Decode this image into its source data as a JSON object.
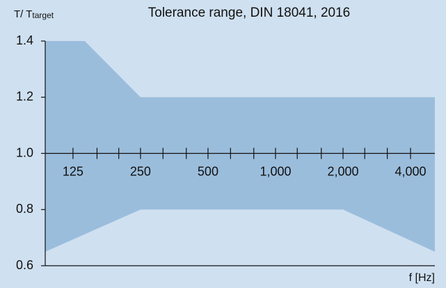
{
  "chart_data": {
    "type": "area",
    "title": "Tolerance range, DIN 18041, 2016",
    "ylabel": {
      "text": "T/ T",
      "subscript": "target"
    },
    "xlabel": "f [Hz]",
    "xscale": "log",
    "color": "#9bbddc",
    "upper": {
      "x": [
        94,
        141,
        250,
        5135
      ],
      "values": [
        1.4,
        1.4,
        1.2,
        1.2
      ]
    },
    "lower": {
      "x": [
        94,
        250,
        2000,
        5135
      ],
      "values": [
        0.65,
        0.8,
        0.8,
        0.65
      ]
    },
    "xlim": [
      94,
      5135
    ],
    "xticks": [
      125,
      250,
      500,
      {
        "value": 1000,
        "label": "1,000"
      },
      {
        "value": 2000,
        "label": "2,000"
      },
      {
        "value": 4000,
        "label": "4,000"
      }
    ],
    "xminor_ticks": [
      160,
      200,
      315,
      400,
      630,
      800,
      1250,
      1600,
      2500,
      3150
    ],
    "xaxis_at": 1,
    "ylim": [
      0.6,
      1.4
    ],
    "yticks": [
      0.6,
      0.8,
      {
        "value": 1,
        "label": "1.0"
      },
      1.2,
      1.4
    ]
  }
}
